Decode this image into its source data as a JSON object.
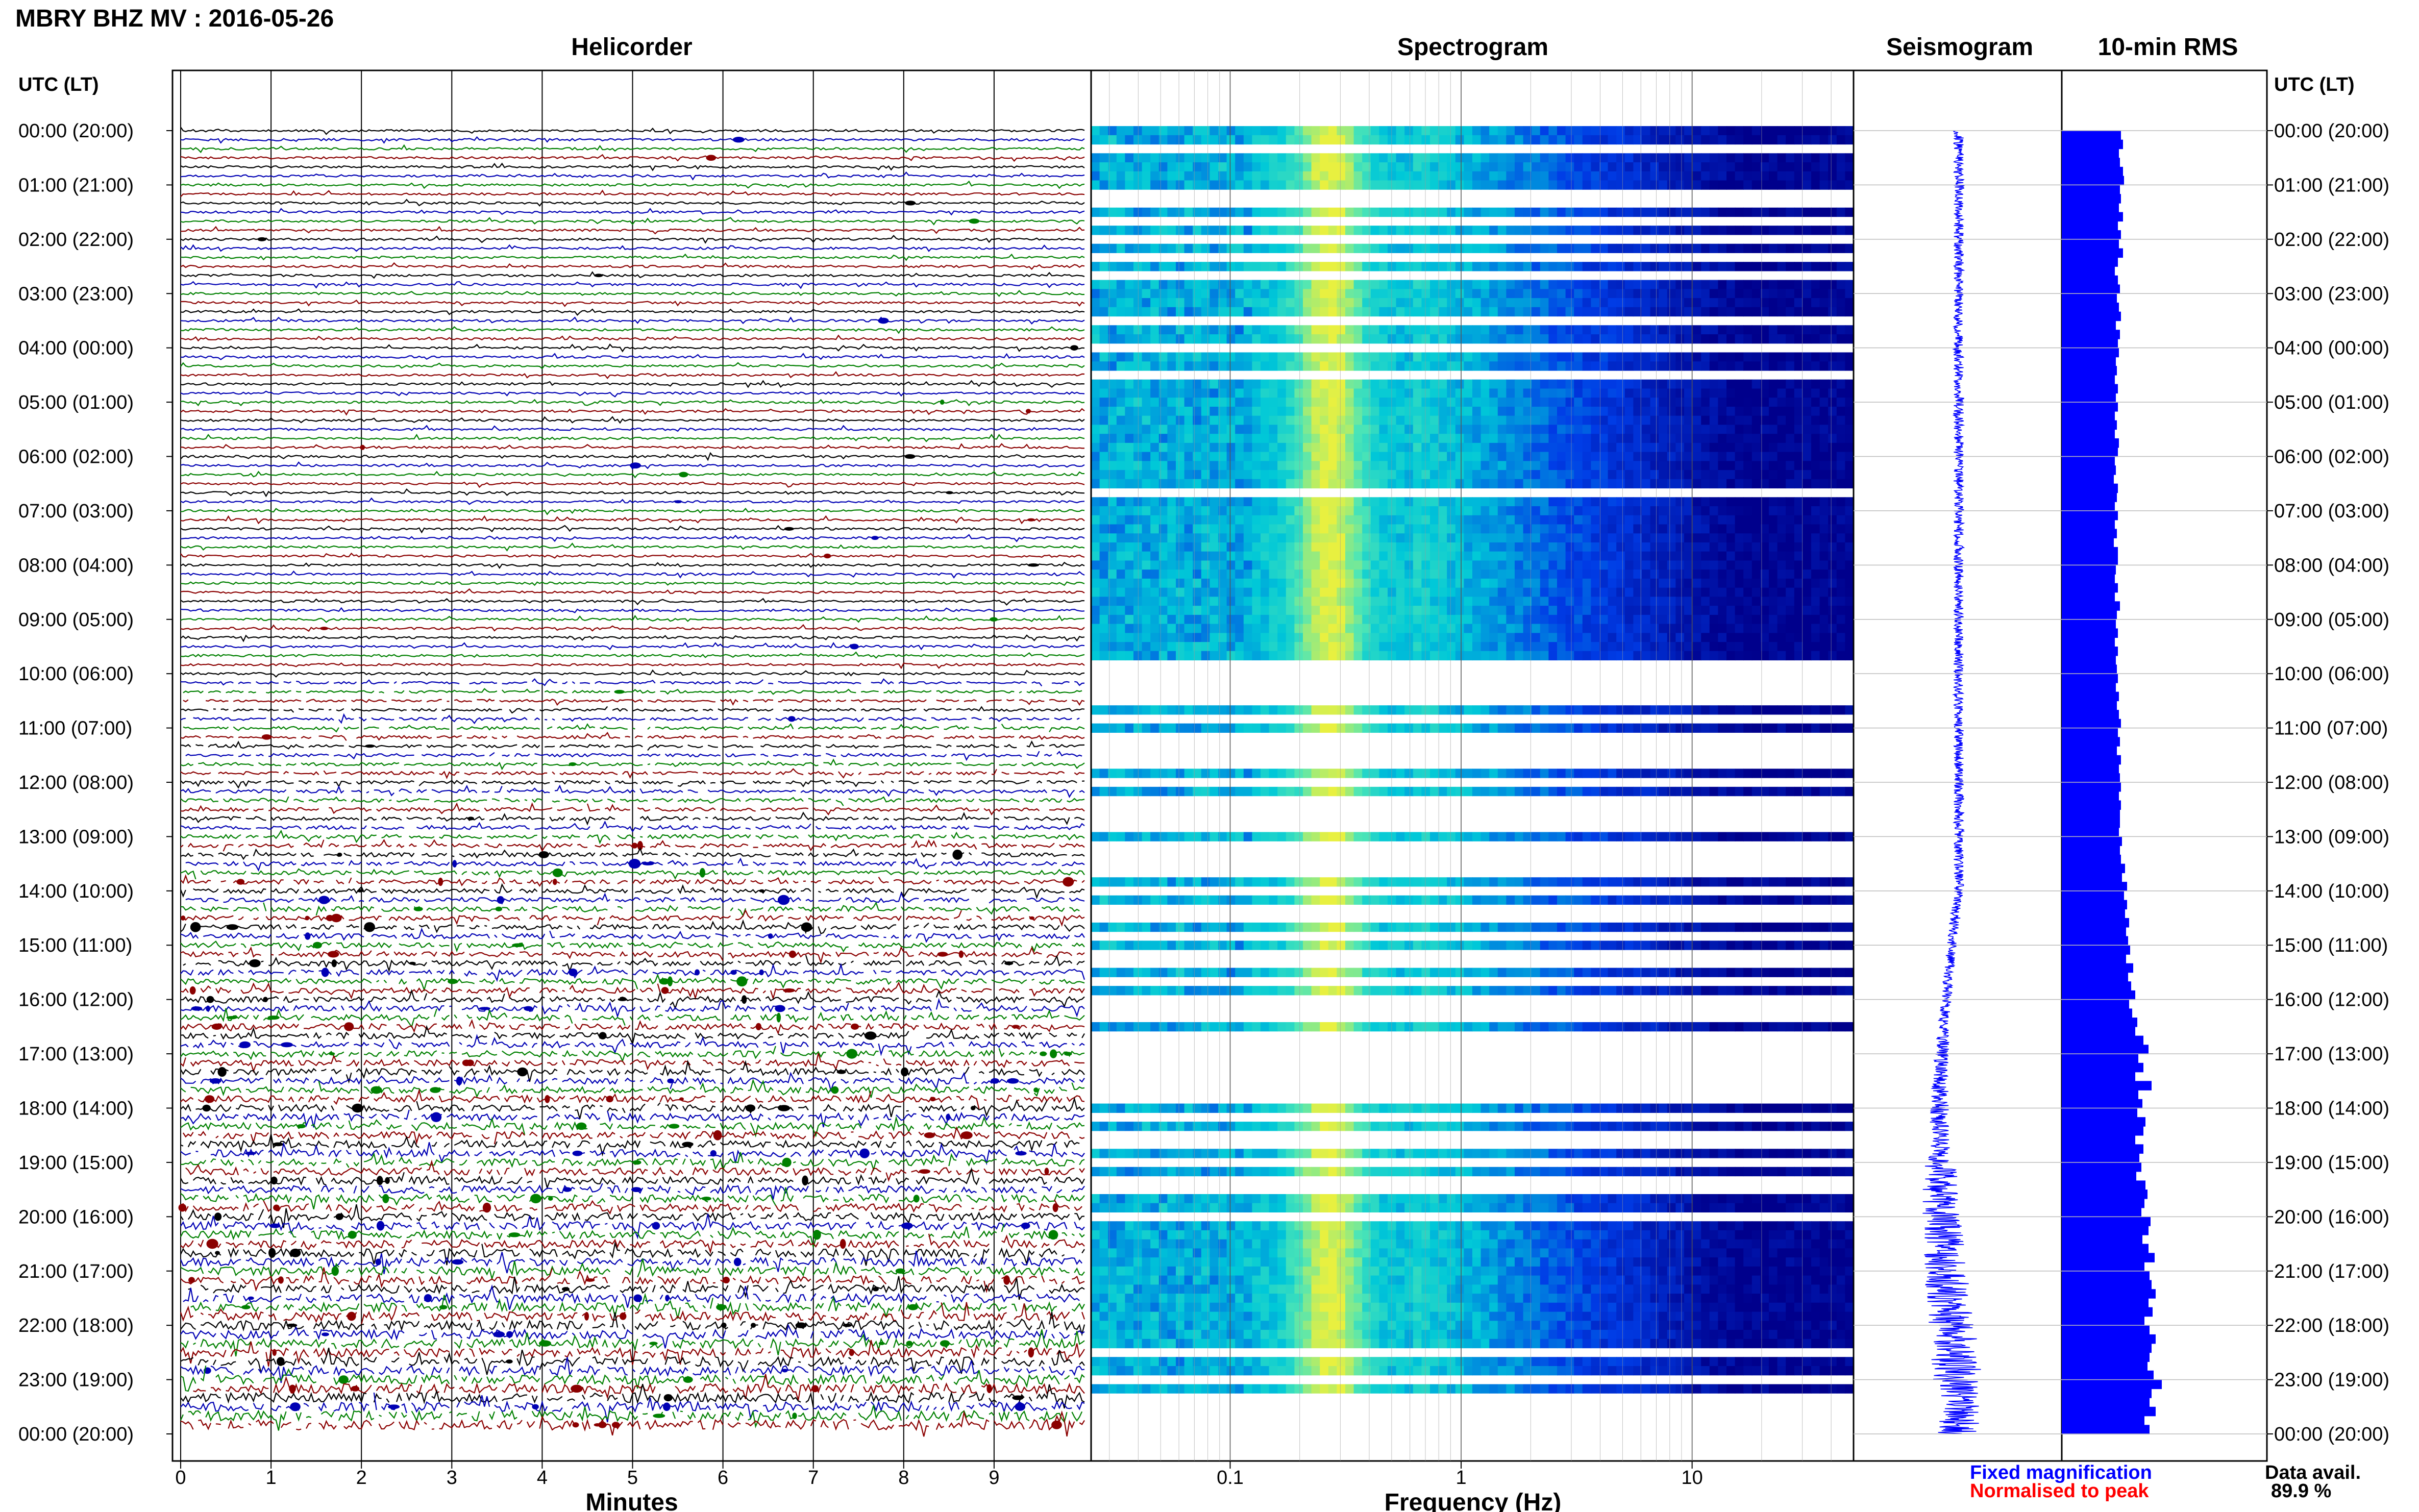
{
  "header": {
    "title": "MBRY BHZ MV : 2016-05-26"
  },
  "panels": {
    "helicorder": "Helicorder",
    "spectrogram": "Spectrogram",
    "seismogram": "Seismogram",
    "rms": "10-min RMS"
  },
  "axis": {
    "left_heading": "UTC (LT)",
    "right_heading": "UTC (LT)",
    "xlabel_helicorder": "Minutes",
    "xlabel_spectrogram": "Frequency (Hz)"
  },
  "footer": {
    "fixed_label": "Fixed magnification",
    "normalised_label": "Normalised to peak",
    "data_avail_label": "Data avail.",
    "data_avail_value": "89.9 %"
  },
  "colors": {
    "trace_cycle": [
      "#000000",
      "#0000b4",
      "#008000",
      "#8b0000"
    ],
    "seismogram": "#0000ff",
    "rms": "#0000ff",
    "fixed_label": "#0000ff",
    "normalised_label": "#ff0000",
    "spectrogram_low": "#00008c",
    "spectrogram_mid": "#00c8d8",
    "spectrogram_high": "#e8f040"
  },
  "chart_data": [
    {
      "type": "helicorder",
      "title": "Helicorder",
      "xlabel": "Minutes",
      "xlim": [
        0,
        10
      ],
      "xticks": [
        "0",
        "1",
        "2",
        "3",
        "4",
        "5",
        "6",
        "7",
        "8",
        "9"
      ],
      "y_tick_labels": [
        "00:00 (20:00)",
        "01:00 (21:00)",
        "02:00 (22:00)",
        "03:00 (23:00)",
        "04:00 (00:00)",
        "05:00 (01:00)",
        "06:00 (02:00)",
        "07:00 (03:00)",
        "08:00 (04:00)",
        "09:00 (05:00)",
        "10:00 (06:00)",
        "11:00 (07:00)",
        "12:00 (08:00)",
        "13:00 (09:00)",
        "14:00 (10:00)",
        "15:00 (11:00)",
        "16:00 (12:00)",
        "17:00 (13:00)",
        "18:00 (14:00)",
        "19:00 (15:00)",
        "20:00 (16:00)",
        "21:00 (17:00)",
        "22:00 (18:00)",
        "23:00 (19:00)",
        "00:00 (20:00)"
      ],
      "rows": 144
    },
    {
      "type": "heatmap",
      "title": "Spectrogram",
      "xlabel": "Frequency (Hz)",
      "xscale": "log",
      "xlim": [
        0.025,
        50
      ],
      "xticks": [
        "0.1",
        "1",
        "10"
      ],
      "peak_band_hz": [
        0.2,
        0.35
      ],
      "gap_rows": [
        2,
        7,
        8,
        10,
        12,
        14,
        16,
        21,
        24,
        27,
        40,
        59,
        60,
        61,
        62,
        63,
        65,
        67,
        68,
        69,
        70,
        72,
        74,
        75,
        76,
        77,
        79,
        80,
        81,
        82,
        84,
        86,
        87,
        89,
        91,
        92,
        94,
        96,
        97,
        98,
        100,
        101,
        102,
        103,
        104,
        105,
        106,
        107,
        109,
        111,
        112,
        114,
        116,
        117,
        120,
        135,
        138,
        140,
        141,
        142,
        143
      ]
    },
    {
      "type": "line",
      "title": "Seismogram",
      "envelope_trend": "slight leftward drift during 15:00-22:00 UTC with larger amplitude 17:00-23:00"
    },
    {
      "type": "bar",
      "title": "10-min RMS",
      "orientation": "horizontal",
      "bins": 144,
      "relative_values": [
        0.58,
        0.6,
        0.56,
        0.57,
        0.6,
        0.61,
        0.57,
        0.58,
        0.56,
        0.6,
        0.55,
        0.58,
        0.56,
        0.6,
        0.55,
        0.52,
        0.55,
        0.57,
        0.54,
        0.56,
        0.58,
        0.53,
        0.57,
        0.55,
        0.56,
        0.53,
        0.54,
        0.52,
        0.55,
        0.53,
        0.55,
        0.52,
        0.54,
        0.52,
        0.56,
        0.55,
        0.52,
        0.53,
        0.51,
        0.55,
        0.54,
        0.52,
        0.55,
        0.52,
        0.54,
        0.51,
        0.55,
        0.55,
        0.53,
        0.52,
        0.55,
        0.52,
        0.57,
        0.54,
        0.53,
        0.55,
        0.52,
        0.55,
        0.53,
        0.54,
        0.55,
        0.53,
        0.56,
        0.54,
        0.56,
        0.58,
        0.55,
        0.57,
        0.54,
        0.58,
        0.56,
        0.57,
        0.58,
        0.56,
        0.58,
        0.57,
        0.57,
        0.56,
        0.59,
        0.57,
        0.58,
        0.62,
        0.59,
        0.64,
        0.61,
        0.64,
        0.62,
        0.66,
        0.63,
        0.65,
        0.67,
        0.63,
        0.7,
        0.65,
        0.68,
        0.72,
        0.66,
        0.69,
        0.74,
        0.72,
        0.8,
        0.85,
        0.75,
        0.8,
        0.72,
        0.88,
        0.75,
        0.79,
        0.74,
        0.82,
        0.8,
        0.72,
        0.8,
        0.76,
        0.78,
        0.73,
        0.82,
        0.84,
        0.81,
        0.78,
        0.87,
        0.85,
        0.79,
        0.85,
        0.91,
        0.81,
        0.86,
        0.88,
        0.92,
        0.85,
        0.89,
        0.81,
        0.86,
        0.92,
        0.88,
        0.86,
        0.84,
        0.9,
        0.98,
        0.88,
        0.86,
        0.92,
        0.81,
        0.86
      ]
    }
  ]
}
